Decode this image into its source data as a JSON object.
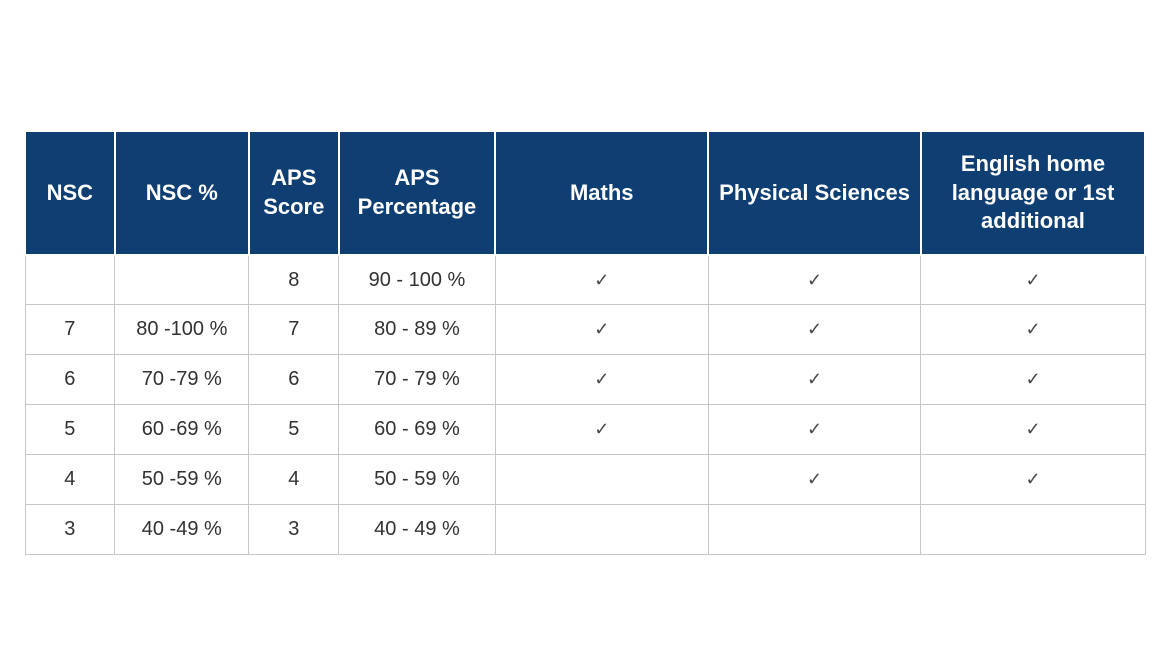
{
  "table": {
    "type": "table",
    "background_color": "#ffffff",
    "header_bg_color": "#0e3e72",
    "header_text_color": "#ffffff",
    "header_font_size": 22,
    "header_font_weight": "bold",
    "cell_text_color": "#323232",
    "cell_font_size": 20,
    "border_color": "#c7c7c7",
    "header_border_color": "#ffffff",
    "check_glyph": "✓",
    "columns": [
      {
        "key": "nsc",
        "label": "NSC",
        "width_pct": 8
      },
      {
        "key": "nsc_pct",
        "label": "NSC %",
        "width_pct": 12
      },
      {
        "key": "aps_score",
        "label": "APS Score",
        "width_pct": 8
      },
      {
        "key": "aps_pct",
        "label": "APS Percentage",
        "width_pct": 14
      },
      {
        "key": "maths",
        "label": "Maths",
        "width_pct": 19
      },
      {
        "key": "phys",
        "label": "Physical Sciences",
        "width_pct": 19
      },
      {
        "key": "eng",
        "label": "English home language or 1st additional",
        "width_pct": 20
      }
    ],
    "rows": [
      {
        "nsc": "",
        "nsc_pct": "",
        "aps_score": "8",
        "aps_pct": "90 - 100 %",
        "maths": true,
        "phys": true,
        "eng": true
      },
      {
        "nsc": "7",
        "nsc_pct": "80 -100 %",
        "aps_score": "7",
        "aps_pct": "80 - 89 %",
        "maths": true,
        "phys": true,
        "eng": true
      },
      {
        "nsc": "6",
        "nsc_pct": "70 -79 %",
        "aps_score": "6",
        "aps_pct": "70 - 79 %",
        "maths": true,
        "phys": true,
        "eng": true
      },
      {
        "nsc": "5",
        "nsc_pct": "60 -69 %",
        "aps_score": "5",
        "aps_pct": "60 - 69 %",
        "maths": true,
        "phys": true,
        "eng": true
      },
      {
        "nsc": "4",
        "nsc_pct": "50 -59 %",
        "aps_score": "4",
        "aps_pct": "50 - 59 %",
        "maths": false,
        "phys": true,
        "eng": true
      },
      {
        "nsc": "3",
        "nsc_pct": "40 -49 %",
        "aps_score": "3",
        "aps_pct": "40 - 49 %",
        "maths": false,
        "phys": false,
        "eng": false
      }
    ]
  }
}
